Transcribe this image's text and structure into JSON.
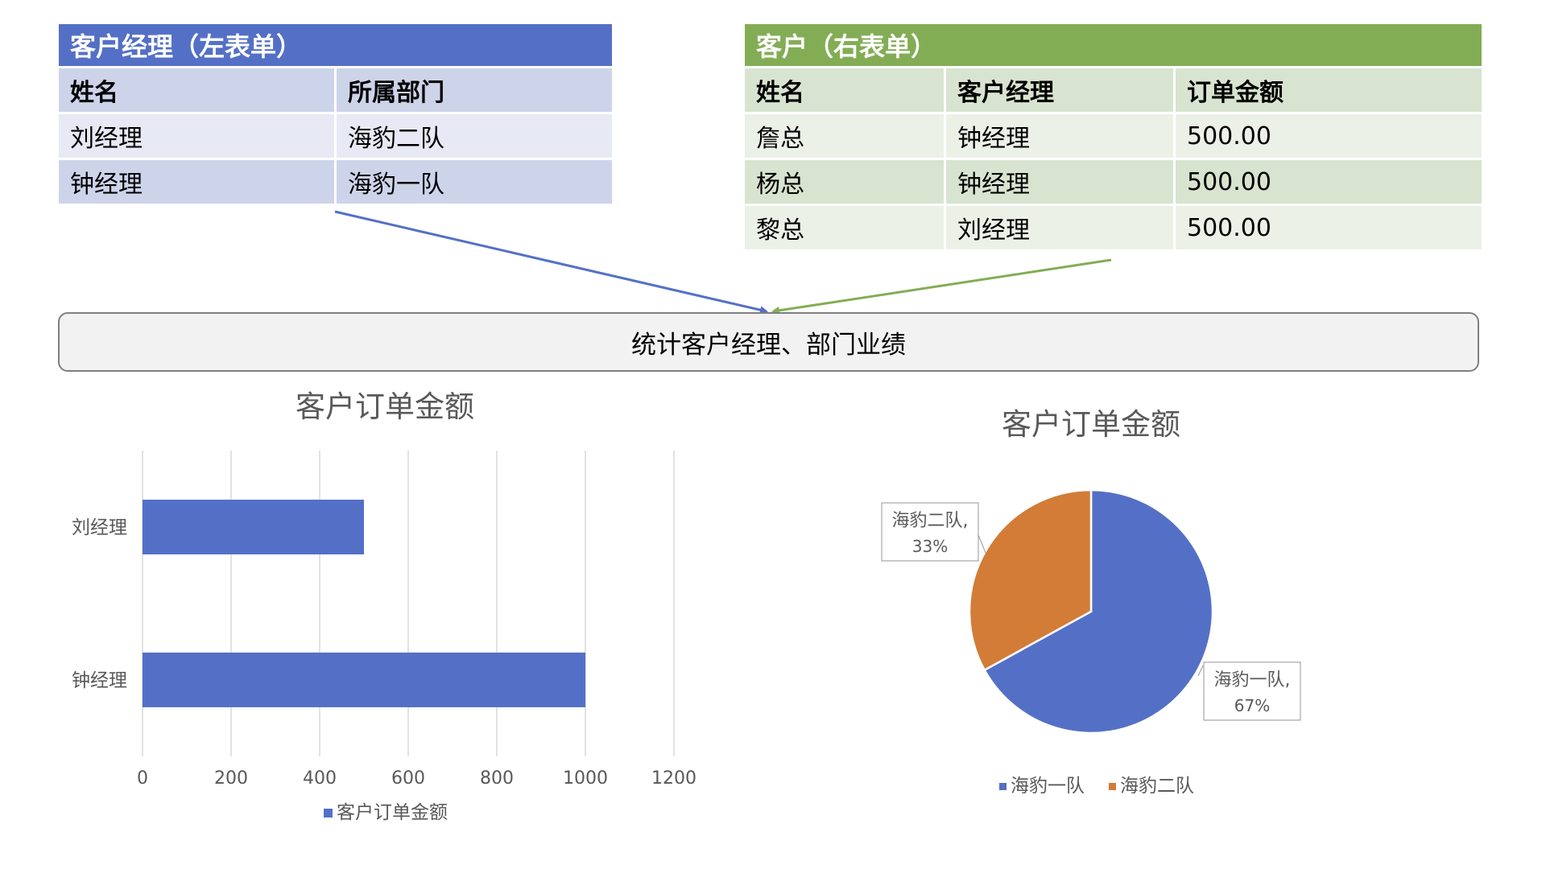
{
  "left_table": {
    "title": "客户经理（左表单）",
    "headers": [
      "姓名",
      "所属部门"
    ],
    "rows": [
      [
        "刘经理",
        "海豹二队"
      ],
      [
        "钟经理",
        "海豹一队"
      ]
    ]
  },
  "right_table": {
    "title": "客户（右表单）",
    "headers": [
      "姓名",
      "客户经理",
      "订单金额"
    ],
    "rows": [
      [
        "詹总",
        "钟经理",
        "500.00"
      ],
      [
        "杨总",
        "钟经理",
        "500.00"
      ],
      [
        "黎总",
        "刘经理",
        "500.00"
      ]
    ]
  },
  "stat_box": {
    "label": "统计客户经理、部门业绩"
  },
  "colors": {
    "blue": "#5470c6",
    "green": "#83ad55",
    "orange": "#d27c38"
  },
  "chart_data": [
    {
      "type": "bar",
      "orientation": "horizontal",
      "title": "客户订单金额",
      "categories": [
        "刘经理",
        "钟经理"
      ],
      "series": [
        {
          "name": "客户订单金额",
          "values": [
            500,
            1000
          ]
        }
      ],
      "xlim": [
        0,
        1200
      ],
      "xticks": [
        "0",
        "200",
        "400",
        "600",
        "800",
        "1000",
        "1200"
      ],
      "grid": true,
      "legend": "bottom"
    },
    {
      "type": "pie",
      "title": "客户订单金额",
      "categories": [
        "海豹一队",
        "海豹二队"
      ],
      "values": [
        67,
        33
      ],
      "data_labels": [
        {
          "name": "海豹一队,",
          "pct": "67%"
        },
        {
          "name": "海豹二队,",
          "pct": "33%"
        }
      ],
      "legend": "bottom"
    }
  ]
}
